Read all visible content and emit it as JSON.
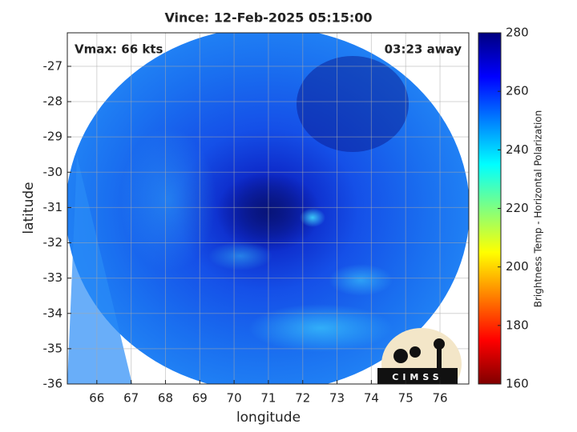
{
  "chart_data": {
    "type": "image",
    "title": "Vince: 12-Feb-2025 05:15:00",
    "annotations": [
      "Vmax: 66 kts",
      "03:23 away"
    ],
    "x_label": "longitude",
    "y_label": "latitude",
    "xlim": [
      65.14,
      76.84
    ],
    "xticks": [
      66,
      67,
      68,
      69,
      70,
      71,
      72,
      73,
      74,
      75,
      76
    ],
    "ylim": [
      -36,
      -26.05
    ],
    "yticks": [
      -27,
      -28,
      -29,
      -30,
      -31,
      -32,
      -33,
      -34,
      -35,
      -36
    ],
    "grid": true,
    "colorbar": {
      "label": "Brightness Temp - Horizontal Polarization",
      "colormap": "jet",
      "lim": [
        160,
        280
      ],
      "ticks": [
        160,
        180,
        200,
        220,
        240,
        260,
        280
      ]
    },
    "logo": "CIMSS"
  }
}
